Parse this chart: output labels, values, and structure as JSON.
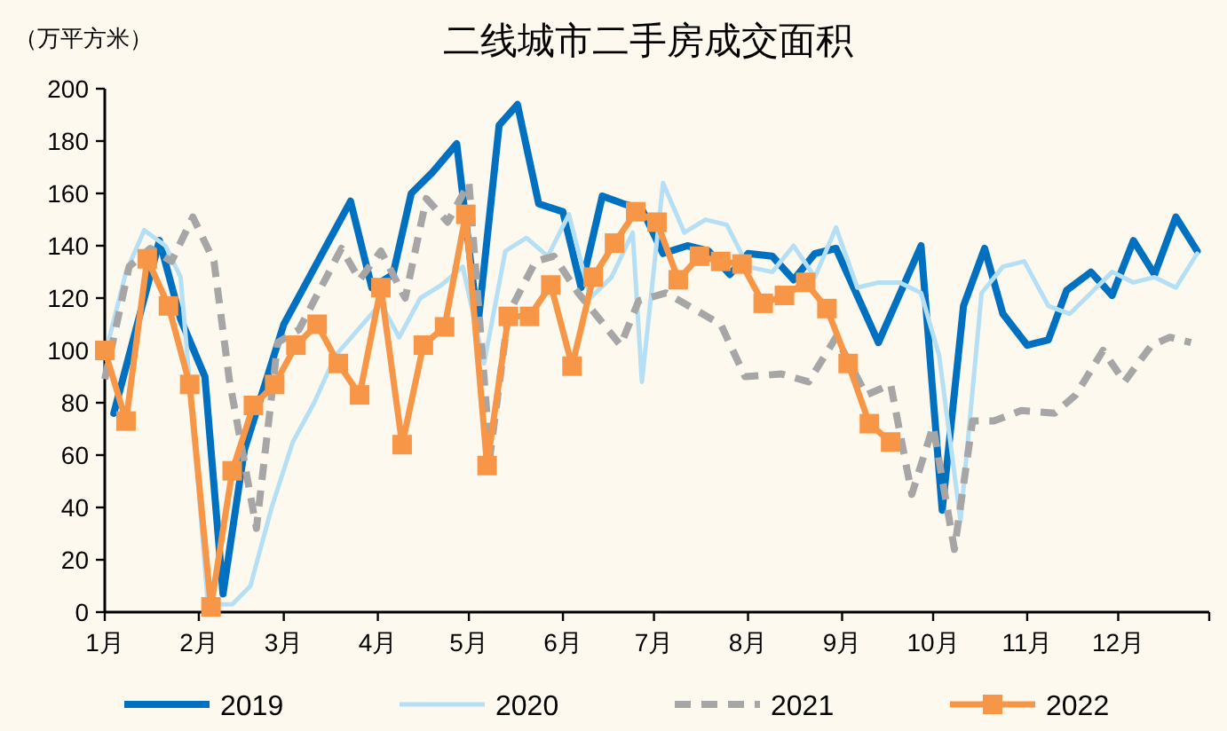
{
  "chart_data": {
    "type": "line",
    "title": "二线城市二手房成交面积",
    "ylabel": "（万平方米）",
    "xlim": [
      "--01-01",
      "--12-31"
    ],
    "xticks": [
      {
        "value": "--01-01",
        "label": "1月"
      },
      {
        "value": "--02-01",
        "label": "2月"
      },
      {
        "value": "--03-01",
        "label": "3月"
      },
      {
        "value": "--04-01",
        "label": "4月"
      },
      {
        "value": "--05-01",
        "label": "5月"
      },
      {
        "value": "--06-01",
        "label": "6月"
      },
      {
        "value": "--07-01",
        "label": "7月"
      },
      {
        "value": "--08-01",
        "label": "8月"
      },
      {
        "value": "--09-01",
        "label": "9月"
      },
      {
        "value": "--10-01",
        "label": "10月"
      },
      {
        "value": "--11-01",
        "label": "11月"
      },
      {
        "value": "--12-01",
        "label": "12月"
      },
      {
        "value": "--12-31",
        "label": null
      }
    ],
    "ylim": [
      0,
      200
    ],
    "yticks": [
      0,
      20,
      40,
      60,
      80,
      100,
      120,
      140,
      160,
      180,
      200
    ],
    "grid": false,
    "legend": "bottom",
    "series": [
      {
        "name": "2019",
        "color": "#0070c0",
        "line_style": "solid",
        "marker": "none",
        "x": [
          "--01-04",
          "--01-19",
          "--01-26",
          "--02-03",
          "--02-09",
          "--02-16",
          "--03-01",
          "--03-23",
          "--03-30",
          "--04-06",
          "--04-12",
          "--04-19",
          "--04-27",
          "--05-04",
          "--05-11",
          "--05-17",
          "--05-24",
          "--06-01",
          "--06-07",
          "--06-14",
          "--06-21",
          "--06-27",
          "--07-04",
          "--07-12",
          "--07-19",
          "--07-26",
          "--08-01",
          "--08-09",
          "--08-16",
          "--08-23",
          "--08-30",
          "--09-13",
          "--09-27",
          "--10-04",
          "--10-11",
          "--10-18",
          "--10-24",
          "--11-01",
          "--11-08",
          "--11-14",
          "--11-22",
          "--11-29",
          "--12-06",
          "--12-13",
          "--12-20",
          "--12-27"
        ],
        "values": [
          76,
          142,
          112,
          90,
          7,
          62,
          110,
          157,
          124,
          129,
          160,
          168,
          179,
          110,
          186,
          194,
          156,
          153,
          124,
          159,
          156,
          154,
          137,
          140,
          138,
          129,
          137,
          136,
          127,
          137,
          139,
          103,
          140,
          39,
          117,
          139,
          114,
          102,
          104,
          123,
          130,
          121,
          142,
          129,
          151,
          138
        ]
      },
      {
        "name": "2020",
        "color": "#b4dff5",
        "line_style": "solid",
        "marker": "none",
        "x": [
          "--01-01",
          "--01-08",
          "--01-14",
          "--01-21",
          "--01-26",
          "--01-31",
          "--02-04",
          "--02-12",
          "--02-18",
          "--02-25",
          "--03-04",
          "--03-11",
          "--03-18",
          "--03-27",
          "--04-02",
          "--04-08",
          "--04-15",
          "--04-22",
          "--04-29",
          "--05-06",
          "--05-13",
          "--05-20",
          "--05-27",
          "--06-03",
          "--06-10",
          "--06-17",
          "--06-24",
          "--06-27",
          "--07-04",
          "--07-11",
          "--07-18",
          "--07-25",
          "--08-01",
          "--08-09",
          "--08-16",
          "--08-23",
          "--08-30",
          "--09-06",
          "--09-13",
          "--09-20",
          "--09-27",
          "--10-03",
          "--10-10",
          "--10-17",
          "--10-24",
          "--10-31",
          "--11-08",
          "--11-15",
          "--11-22",
          "--11-29",
          "--12-06",
          "--12-13",
          "--12-20",
          "--12-27"
        ],
        "values": [
          98,
          130,
          146,
          140,
          128,
          60,
          3,
          3,
          10,
          40,
          65,
          80,
          98,
          110,
          118,
          105,
          120,
          125,
          132,
          95,
          138,
          143,
          136,
          152,
          120,
          128,
          145,
          88,
          164,
          145,
          150,
          148,
          132,
          130,
          140,
          128,
          147,
          124,
          126,
          126,
          122,
          98,
          35,
          122,
          132,
          134,
          117,
          114,
          122,
          130,
          126,
          128,
          124,
          137
        ]
      },
      {
        "name": "2021",
        "color": "#a6a6a6",
        "line_style": "dashed",
        "marker": "none",
        "x": [
          "--01-01",
          "--01-09",
          "--01-16",
          "--01-23",
          "--01-30",
          "--02-06",
          "--02-11",
          "--02-20",
          "--02-27",
          "--03-06",
          "--03-20",
          "--03-26",
          "--04-02",
          "--04-10",
          "--04-17",
          "--04-24",
          "--05-01",
          "--05-08",
          "--05-14",
          "--05-23",
          "--05-29",
          "--06-06",
          "--06-20",
          "--06-26",
          "--07-05",
          "--07-17",
          "--07-23",
          "--07-31",
          "--08-12",
          "--08-21",
          "--08-30",
          "--09-09",
          "--09-17",
          "--09-24",
          "--10-01",
          "--10-08",
          "--10-14",
          "--10-21",
          "--10-30",
          "--11-10",
          "--11-17",
          "--11-26",
          "--12-03",
          "--12-12",
          "--12-18",
          "--12-25"
        ],
        "values": [
          89,
          132,
          139,
          134,
          151,
          134,
          89,
          32,
          103,
          108,
          139,
          127,
          138,
          120,
          158,
          149,
          164,
          60,
          114,
          134,
          136,
          122,
          102,
          119,
          122,
          114,
          110,
          90,
          91,
          88,
          105,
          83,
          87,
          45,
          71,
          24,
          73,
          73,
          77,
          76,
          83,
          100,
          88,
          102,
          105,
          103
        ]
      },
      {
        "name": "2022",
        "color": "#f79646",
        "line_style": "solid",
        "marker": "square",
        "x": [
          "--01-01",
          "--01-08",
          "--01-15",
          "--01-22",
          "--01-29",
          "--02-05",
          "--02-12",
          "--02-19",
          "--02-26",
          "--03-05",
          "--03-12",
          "--03-19",
          "--03-26",
          "--04-02",
          "--04-09",
          "--04-16",
          "--04-23",
          "--04-30",
          "--05-07",
          "--05-14",
          "--05-21",
          "--05-28",
          "--06-04",
          "--06-11",
          "--06-18",
          "--06-25",
          "--07-02",
          "--07-09",
          "--07-16",
          "--07-23",
          "--07-30",
          "--08-06",
          "--08-13",
          "--08-20",
          "--08-27",
          "--09-03",
          "--09-10",
          "--09-17"
        ],
        "values": [
          100,
          73,
          135,
          117,
          87,
          2,
          54,
          79,
          87,
          102,
          110,
          95,
          83,
          124,
          64,
          102,
          109,
          152,
          56,
          113,
          113,
          125,
          94,
          128,
          141,
          153,
          149,
          127,
          136,
          134,
          133,
          118,
          121,
          126,
          116,
          95,
          72,
          65
        ]
      }
    ]
  }
}
